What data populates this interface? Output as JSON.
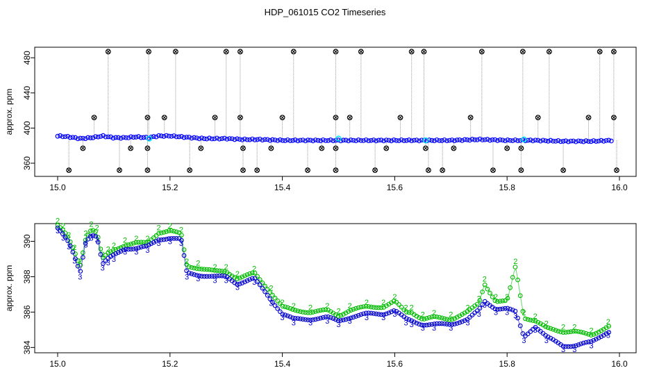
{
  "chart_data": [
    {
      "type": "scatter",
      "title": "HDP_061015  CO2 Timeseries",
      "ylabel": "approx. ppm",
      "xlim": [
        15.0,
        16.0
      ],
      "ylim": [
        345,
        492
      ],
      "xticks": [
        "15.0",
        "15.2",
        "15.4",
        "15.6",
        "15.8",
        "16.0"
      ],
      "yticks": [
        "360",
        "400",
        "440",
        "480"
      ],
      "colors": {
        "main": "#0000ff",
        "cyan": "#00e5ee",
        "outlier": "#000000",
        "line": "#999999"
      },
      "baseline": {
        "x": [
          15.0,
          15.02,
          15.04,
          15.06,
          15.08,
          15.1,
          15.12,
          15.14,
          15.16,
          15.18,
          15.2,
          15.22,
          15.24,
          15.26,
          15.28,
          15.3,
          15.33,
          15.36,
          15.4,
          15.45,
          15.5,
          15.55,
          15.6,
          15.66,
          15.7,
          15.75,
          15.8,
          15.85,
          15.9,
          15.95,
          15.99
        ],
        "y": [
          391,
          390,
          388,
          389,
          391,
          389,
          389,
          390,
          389,
          391,
          391,
          390,
          389,
          388,
          388,
          388,
          387,
          387,
          386,
          386,
          386,
          386,
          386,
          386,
          386,
          387,
          386,
          386,
          385,
          385,
          386
        ]
      },
      "outliers_high": {
        "x": [
          15.09,
          15.162,
          15.21,
          15.3,
          15.325,
          15.42,
          15.495,
          15.54,
          15.63,
          15.652,
          15.755,
          15.828,
          15.875,
          15.965,
          15.99
        ],
        "y": [
          487,
          487,
          487,
          487,
          487,
          487,
          487,
          487,
          487,
          487,
          487,
          487,
          487,
          487,
          487
        ]
      },
      "outliers_mid": {
        "x": [
          15.065,
          15.16,
          15.19,
          15.28,
          15.325,
          15.4,
          15.495,
          15.52,
          15.61,
          15.735,
          15.855,
          15.945,
          15.99
        ],
        "y": [
          412,
          412,
          412,
          412,
          412,
          412,
          412,
          412,
          412,
          412,
          412,
          412,
          412
        ]
      },
      "outliers_low": {
        "x": [
          15.045,
          15.13,
          15.16,
          15.255,
          15.33,
          15.38,
          15.47,
          15.495,
          15.585,
          15.655,
          15.705,
          15.8,
          15.825
        ],
        "y": [
          377,
          377,
          377,
          377,
          377,
          377,
          377,
          377,
          377,
          377,
          377,
          377,
          377
        ]
      },
      "outliers_bottom": {
        "x": [
          15.02,
          15.11,
          15.16,
          15.235,
          15.33,
          15.355,
          15.445,
          15.495,
          15.565,
          15.66,
          15.685,
          15.775,
          15.825,
          15.9,
          15.995
        ],
        "y": [
          352,
          352,
          352,
          352,
          352,
          352,
          352,
          352,
          352,
          352,
          352,
          352,
          352,
          352,
          352
        ]
      },
      "cyan_points": {
        "x": [
          15.163,
          15.5,
          15.655,
          15.83
        ],
        "y": [
          388,
          388,
          386,
          387
        ]
      }
    },
    {
      "type": "scatter",
      "ylabel": "approx. ppm",
      "xlim": [
        15.0,
        16.0
      ],
      "ylim": [
        383.7,
        391.0
      ],
      "xticks": [
        "15.0",
        "15.2",
        "15.4",
        "15.6",
        "15.8",
        "16.0"
      ],
      "yticks": [
        "384",
        "386",
        "388",
        "390"
      ],
      "colors": {
        "series_2": "#00bb00",
        "series_3": "#0000cc"
      },
      "marker_labels": [
        "2",
        "3"
      ],
      "series": [
        {
          "marker": "2",
          "x": [
            15.0,
            15.01,
            15.02,
            15.03,
            15.04,
            15.05,
            15.06,
            15.07,
            15.08,
            15.09,
            15.1,
            15.12,
            15.14,
            15.16,
            15.18,
            15.2,
            15.22,
            15.23,
            15.25,
            15.28,
            15.3,
            15.32,
            15.35,
            15.38,
            15.4,
            15.42,
            15.45,
            15.48,
            15.5,
            15.52,
            15.55,
            15.58,
            15.6,
            15.62,
            15.63,
            15.65,
            15.67,
            15.7,
            15.73,
            15.75,
            15.76,
            15.78,
            15.8,
            15.815,
            15.83,
            15.85,
            15.87,
            15.9,
            15.92,
            15.95,
            15.98
          ],
          "y": [
            390.9,
            390.6,
            390.1,
            389.4,
            388.6,
            390.2,
            390.7,
            390.5,
            389.0,
            389.3,
            389.5,
            389.8,
            389.9,
            389.9,
            390.5,
            390.6,
            390.4,
            388.6,
            388.5,
            388.3,
            388.3,
            387.9,
            388.2,
            387.1,
            386.3,
            386.1,
            386.0,
            386.1,
            385.8,
            386.1,
            386.3,
            386.3,
            386.6,
            386.0,
            386.0,
            385.6,
            385.7,
            385.6,
            386.0,
            386.5,
            387.6,
            386.6,
            386.6,
            388.6,
            385.7,
            385.5,
            385.1,
            384.9,
            384.9,
            384.7,
            385.2
          ]
        },
        {
          "marker": "3",
          "x": [
            15.0,
            15.01,
            15.02,
            15.03,
            15.04,
            15.05,
            15.06,
            15.07,
            15.08,
            15.09,
            15.1,
            15.12,
            15.14,
            15.16,
            15.18,
            15.2,
            15.22,
            15.23,
            15.25,
            15.28,
            15.3,
            15.32,
            15.35,
            15.38,
            15.4,
            15.42,
            15.45,
            15.48,
            15.5,
            15.52,
            15.55,
            15.58,
            15.6,
            15.62,
            15.63,
            15.65,
            15.67,
            15.7,
            15.73,
            15.75,
            15.76,
            15.78,
            15.8,
            15.815,
            15.83,
            15.85,
            15.87,
            15.9,
            15.92,
            15.95,
            15.98
          ],
          "y": [
            390.8,
            390.4,
            389.9,
            389.1,
            388.2,
            390.0,
            390.4,
            390.3,
            388.7,
            389.0,
            389.2,
            389.6,
            389.6,
            389.7,
            390.1,
            390.2,
            390.1,
            388.2,
            388.1,
            388.0,
            388.0,
            387.6,
            387.9,
            386.7,
            385.9,
            385.6,
            385.6,
            385.7,
            385.5,
            385.7,
            385.9,
            385.9,
            386.1,
            385.6,
            385.5,
            385.3,
            385.3,
            385.3,
            385.6,
            386.1,
            386.6,
            386.2,
            386.2,
            386.0,
            384.6,
            385.2,
            384.6,
            384.1,
            384.1,
            384.3,
            384.9
          ]
        }
      ]
    }
  ]
}
